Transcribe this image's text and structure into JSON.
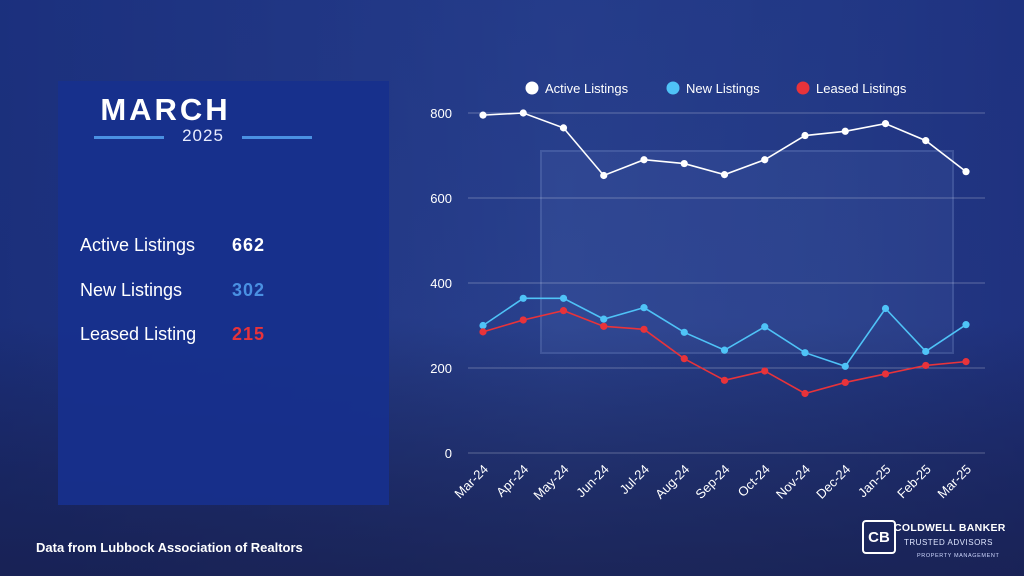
{
  "panel": {
    "month": "MARCH",
    "year": "2025",
    "stats": [
      {
        "label": "Active Listings",
        "value": "662",
        "color": "#ffffff"
      },
      {
        "label": "New Listings",
        "value": "302",
        "color": "#4a90e2"
      },
      {
        "label": "Leased Listing",
        "value": "215",
        "color": "#e8333a"
      }
    ]
  },
  "source_note": "Data from Lubbock Association of Realtors",
  "logo": {
    "mark": "CB",
    "name": "COLDWELL BANKER",
    "sub": "TRUSTED ADVISORS",
    "sub2": "PROPERTY MANAGEMENT"
  },
  "chart_data": {
    "type": "line",
    "categories": [
      "Mar-24",
      "Apr-24",
      "May-24",
      "Jun-24",
      "Jul-24",
      "Aug-24",
      "Sep-24",
      "Oct-24",
      "Nov-24",
      "Dec-24",
      "Jan-25",
      "Feb-25",
      "Mar-25"
    ],
    "series": [
      {
        "name": "Active Listings",
        "color": "#ffffff",
        "values": [
          795,
          800,
          765,
          653,
          690,
          681,
          655,
          690,
          747,
          757,
          775,
          735,
          662
        ]
      },
      {
        "name": "New Listings",
        "color": "#4fc3f7",
        "values": [
          300,
          364,
          364,
          315,
          342,
          284,
          242,
          297,
          236,
          204,
          340,
          239,
          302
        ]
      },
      {
        "name": "Leased Listings",
        "color": "#e8333a",
        "values": [
          285,
          313,
          335,
          298,
          291,
          222,
          171,
          193,
          140,
          166,
          186,
          206,
          215
        ]
      }
    ],
    "yticks": [
      0,
      200,
      400,
      600,
      800
    ],
    "ylim": [
      0,
      800
    ],
    "grid": true,
    "legend_position": "top"
  }
}
